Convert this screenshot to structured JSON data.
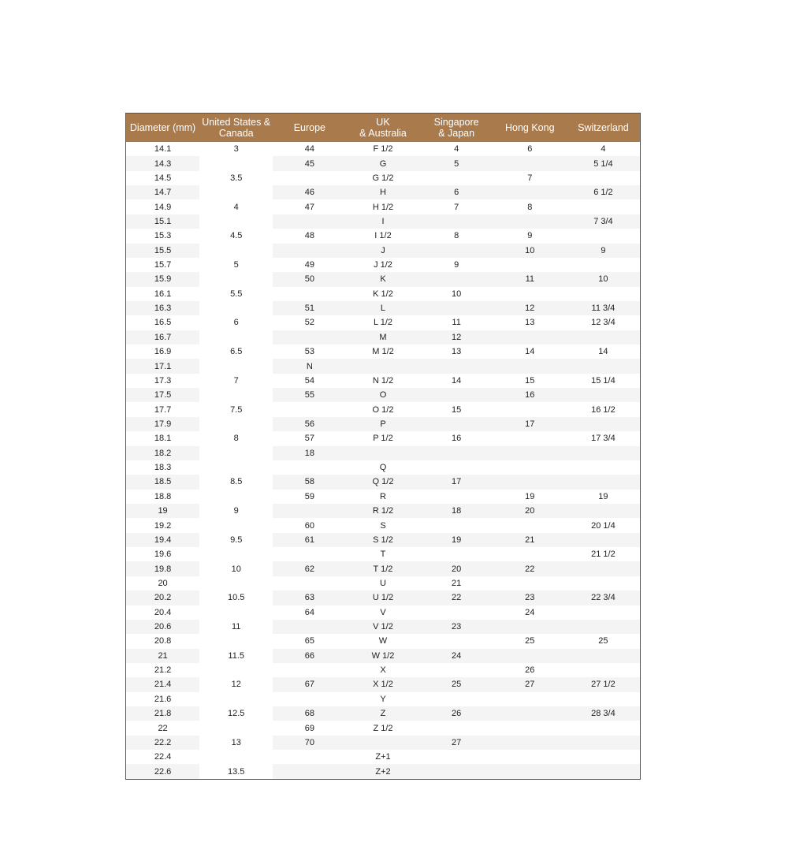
{
  "headers": [
    "Diameter (mm)",
    "United States &\nCanada",
    "Europe",
    "UK\n& Australia",
    "Singapore\n& Japan",
    "Hong Kong",
    "Switzerland"
  ],
  "colors": {
    "header_bg": "#a97a4b",
    "header_text": "#ffffff",
    "row_alt": "#f4f4f4"
  },
  "rows": [
    [
      "14.1",
      "3",
      "44",
      "F 1/2",
      "4",
      "6",
      "4"
    ],
    [
      "14.3",
      "",
      "45",
      "G",
      "5",
      "",
      "5 1/4"
    ],
    [
      "14.5",
      "3.5",
      "",
      "G 1/2",
      "",
      "7",
      ""
    ],
    [
      "14.7",
      "",
      "46",
      "H",
      "6",
      "",
      "6 1/2"
    ],
    [
      "14.9",
      "4",
      "47",
      "H 1/2",
      "7",
      "8",
      ""
    ],
    [
      "15.1",
      "",
      "",
      "I",
      "",
      "",
      "7 3/4"
    ],
    [
      "15.3",
      "4.5",
      "48",
      "I 1/2",
      "8",
      "9",
      ""
    ],
    [
      "15.5",
      "",
      "",
      "J",
      "",
      "10",
      "9"
    ],
    [
      "15.7",
      "5",
      "49",
      "J 1/2",
      "9",
      "",
      ""
    ],
    [
      "15.9",
      "",
      "50",
      "K",
      "",
      "11",
      "10"
    ],
    [
      "16.1",
      "5.5",
      "",
      "K 1/2",
      "10",
      "",
      ""
    ],
    [
      "16.3",
      "",
      "51",
      "L",
      "",
      "12",
      "11 3/4"
    ],
    [
      "16.5",
      "6",
      "52",
      "L 1/2",
      "11",
      "13",
      "12 3/4"
    ],
    [
      "16.7",
      "",
      "",
      "M",
      "12",
      "",
      ""
    ],
    [
      "16.9",
      "6.5",
      "53",
      "M 1/2",
      "13",
      "14",
      "14"
    ],
    [
      "17.1",
      "",
      "N",
      "",
      "",
      "",
      ""
    ],
    [
      "17.3",
      "7",
      "54",
      "N 1/2",
      "14",
      "15",
      "15 1/4"
    ],
    [
      "17.5",
      "",
      "55",
      "O",
      "",
      "16",
      ""
    ],
    [
      "17.7",
      "7.5",
      "",
      "O 1/2",
      "15",
      "",
      "16 1/2"
    ],
    [
      "17.9",
      "",
      "56",
      "P",
      "",
      "17",
      ""
    ],
    [
      "18.1",
      "8",
      "57",
      "P 1/2",
      "16",
      "",
      "17 3/4"
    ],
    [
      "18.2",
      "",
      "18",
      "",
      "",
      "",
      ""
    ],
    [
      "18.3",
      "",
      "",
      "Q",
      "",
      "",
      ""
    ],
    [
      "18.5",
      "8.5",
      "58",
      "Q 1/2",
      "17",
      "",
      ""
    ],
    [
      "18.8",
      "",
      "59",
      "R",
      "",
      "19",
      "19"
    ],
    [
      "19",
      "9",
      "",
      "R 1/2",
      "18",
      "20",
      ""
    ],
    [
      "19.2",
      "",
      "60",
      "S",
      "",
      "",
      "20 1/4"
    ],
    [
      "19.4",
      "9.5",
      "61",
      "S 1/2",
      "19",
      "21",
      ""
    ],
    [
      "19.6",
      "",
      "",
      "T",
      "",
      "",
      "21 1/2"
    ],
    [
      "19.8",
      "10",
      "62",
      "T 1/2",
      "20",
      "22",
      ""
    ],
    [
      "20",
      "",
      "",
      "U",
      "21",
      "",
      ""
    ],
    [
      "20.2",
      "10.5",
      "63",
      "U 1/2",
      "22",
      "23",
      "22 3/4"
    ],
    [
      "20.4",
      "",
      "64",
      "V",
      "",
      "24",
      ""
    ],
    [
      "20.6",
      "11",
      "",
      "V 1/2",
      "23",
      "",
      ""
    ],
    [
      "20.8",
      "",
      "65",
      "W",
      "",
      "25",
      "25"
    ],
    [
      "21",
      "11.5",
      "66",
      "W 1/2",
      "24",
      "",
      ""
    ],
    [
      "21.2",
      "",
      "",
      "X",
      "",
      "26",
      ""
    ],
    [
      "21.4",
      "12",
      "67",
      "X 1/2",
      "25",
      "27",
      "27 1/2"
    ],
    [
      "21.6",
      "",
      "",
      "Y",
      "",
      "",
      ""
    ],
    [
      "21.8",
      "12.5",
      "68",
      "Z",
      "26",
      "",
      "28 3/4"
    ],
    [
      "22",
      "",
      "69",
      "Z 1/2",
      "",
      "",
      ""
    ],
    [
      "22.2",
      "13",
      "70",
      "",
      "27",
      "",
      ""
    ],
    [
      "22.4",
      "",
      "",
      "Z+1",
      "",
      "",
      ""
    ],
    [
      "22.6",
      "13.5",
      "",
      "Z+2",
      "",
      "",
      ""
    ]
  ]
}
